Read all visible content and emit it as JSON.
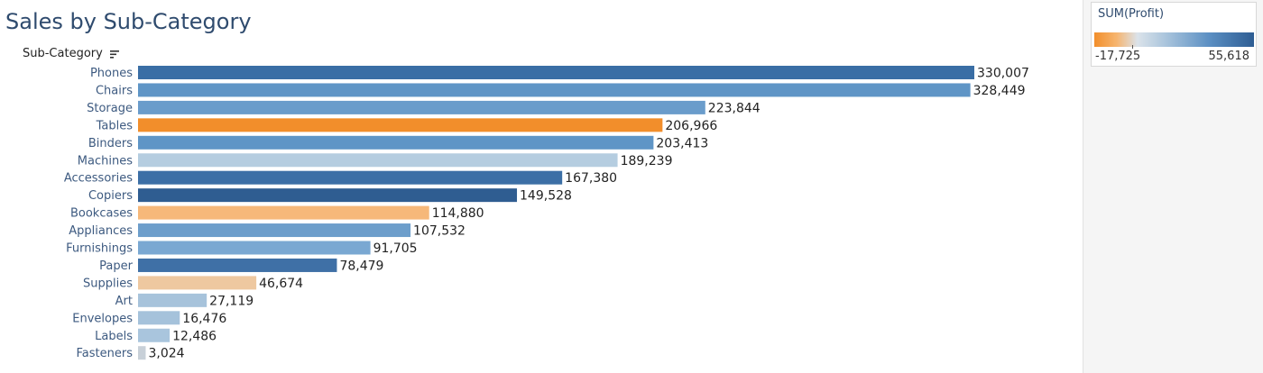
{
  "title": "Sales by Sub-Category",
  "axis_title": "Sub-Category",
  "legend": {
    "title": "SUM(Profit)",
    "min_label": "-17,725",
    "max_label": "55,618",
    "colors": {
      "negative": "#f28e2b",
      "neutral": "#dbe3ea",
      "positive": "#2e5d93"
    }
  },
  "chart_data": {
    "type": "bar",
    "orientation": "horizontal",
    "title": "Sales by Sub-Category",
    "ylabel": "Sub-Category",
    "xlabel": "",
    "xlim": [
      0,
      350000
    ],
    "grid": false,
    "legend_position": "top-right",
    "categories": [
      "Phones",
      "Chairs",
      "Storage",
      "Tables",
      "Binders",
      "Machines",
      "Accessories",
      "Copiers",
      "Bookcases",
      "Appliances",
      "Furnishings",
      "Paper",
      "Supplies",
      "Art",
      "Envelopes",
      "Labels",
      "Fasteners"
    ],
    "values": [
      330007,
      328449,
      223844,
      206966,
      203413,
      189239,
      167380,
      149528,
      114880,
      107532,
      91705,
      78479,
      46674,
      27119,
      16476,
      12486,
      3024
    ],
    "value_labels": [
      "330,007",
      "328,449",
      "223,844",
      "206,966",
      "203,413",
      "189,239",
      "167,380",
      "149,528",
      "114,880",
      "107,532",
      "91,705",
      "78,479",
      "46,674",
      "27,119",
      "16,476",
      "12,486",
      "3,024"
    ],
    "bar_colors": [
      "#3a6ea5",
      "#5f95c6",
      "#6a9ccb",
      "#f28e2b",
      "#5f95c6",
      "#b5cde0",
      "#3c6fa6",
      "#2f5d91",
      "#f6b87a",
      "#6d9ecb",
      "#7aa8d2",
      "#3f70a6",
      "#eec8a0",
      "#a7c3db",
      "#a5c2db",
      "#a9c5dd",
      "#c8d0d8"
    ],
    "color_measure": "SUM(Profit)",
    "color_range": [
      -17725,
      55618
    ]
  }
}
